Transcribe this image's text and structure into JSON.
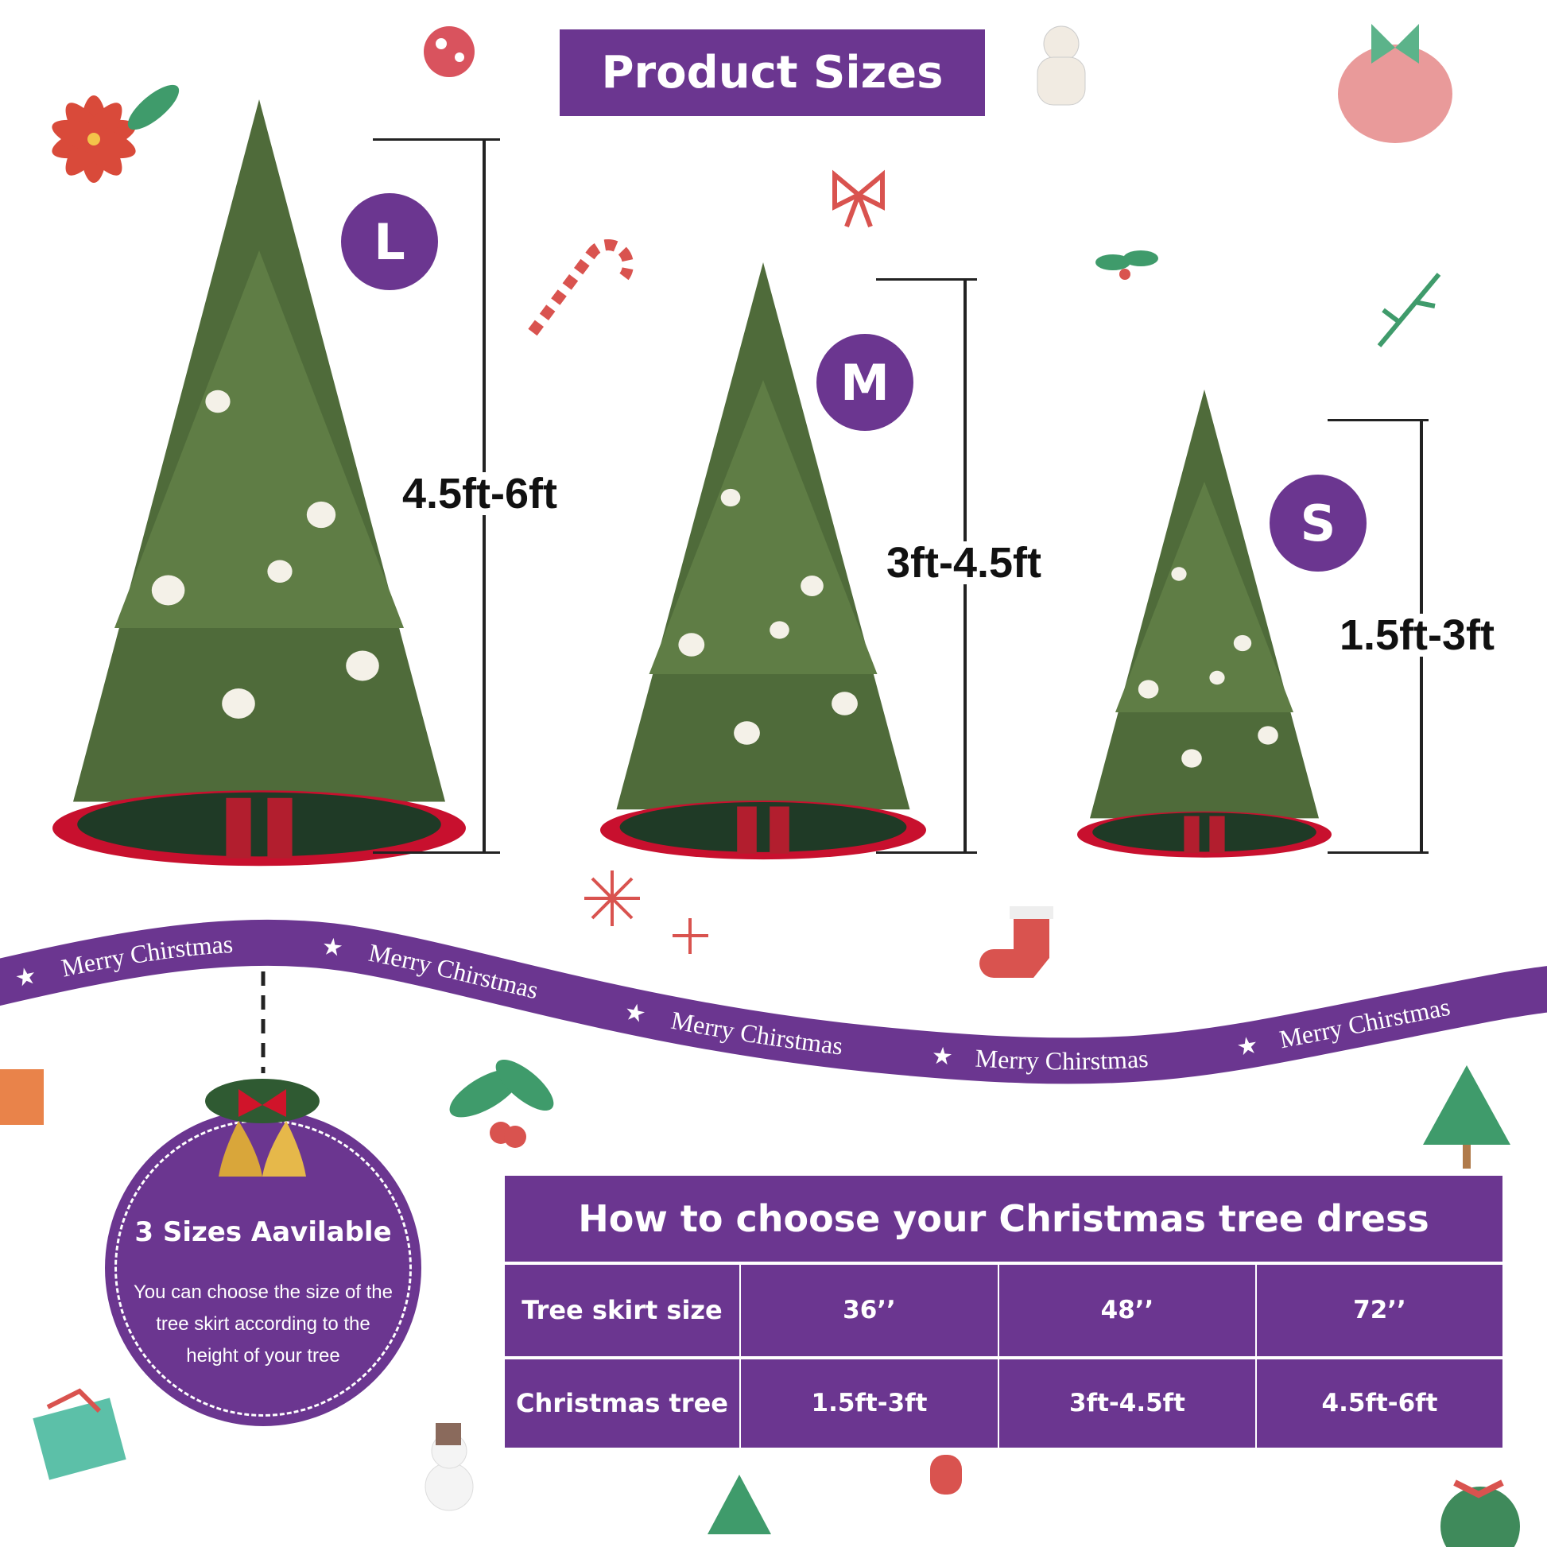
{
  "title": "Product Sizes",
  "sizes": [
    {
      "badge": "L",
      "range": "4.5ft-6ft"
    },
    {
      "badge": "M",
      "range": "3ft-4.5ft"
    },
    {
      "badge": "S",
      "range": "1.5ft-3ft"
    }
  ],
  "ribbon": {
    "text": "Merry Chirstmas",
    "color": "#6b3690"
  },
  "info_circle": {
    "title": "3 Sizes Aavilable",
    "lines": [
      "You can choose the size of the",
      "tree skirt according to the",
      "height of your tree"
    ]
  },
  "table": {
    "title": "How to choose your Christmas tree dress",
    "rows": [
      {
        "label": "Tree skirt size",
        "values": [
          "36’’",
          "48’’",
          "72’’"
        ]
      },
      {
        "label": "Christmas tree",
        "values": [
          "1.5ft-3ft",
          "3ft-4.5ft",
          "4.5ft-6ft"
        ]
      }
    ]
  },
  "colors": {
    "purple": "#6b3690",
    "tree": "#4f6b3a",
    "skirt": "#1f3a26",
    "skirt_edge": "#c8102e"
  }
}
